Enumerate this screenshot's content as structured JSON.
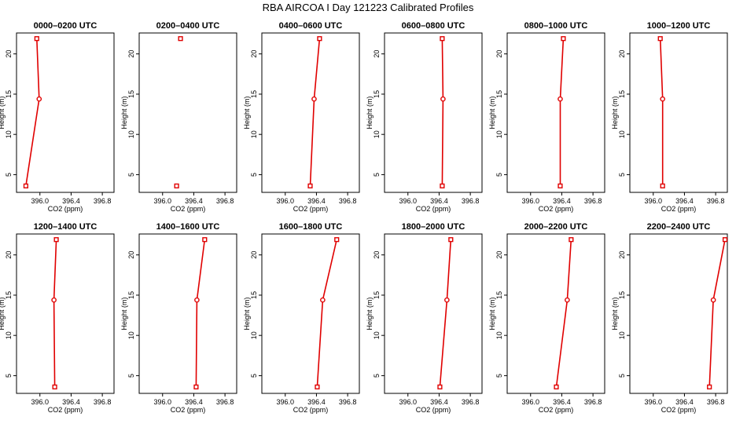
{
  "title": "RBA AIRCOA I  Day 121223  Calibrated Profiles",
  "colors": {
    "series": "#e00000",
    "axis": "#000000"
  },
  "chart_data": [
    {
      "type": "line",
      "title": "0000–0200 UTC",
      "xlabel": "CO2 (ppm)",
      "ylabel": "Height (m)",
      "xlim": [
        395.7,
        396.95
      ],
      "ylim": [
        2.8,
        22.6
      ],
      "xticks": [
        "396.0",
        "396.4",
        "396.8"
      ],
      "xtick_values": [
        396.0,
        396.4,
        396.8
      ],
      "yticks": [
        "5",
        "10",
        "15",
        "20"
      ],
      "ytick_values": [
        5,
        10,
        15,
        20
      ],
      "series": [
        {
          "line": true,
          "points": [
            {
              "x": 395.82,
              "y": 3.6,
              "marker": "square"
            },
            {
              "x": 395.99,
              "y": 14.4,
              "marker": "circle"
            },
            {
              "x": 395.96,
              "y": 21.9,
              "marker": "square"
            }
          ]
        }
      ]
    },
    {
      "type": "line",
      "title": "0200–0400 UTC",
      "xlabel": "CO2 (ppm)",
      "ylabel": "Height (m)",
      "xlim": [
        395.7,
        396.95
      ],
      "ylim": [
        2.8,
        22.6
      ],
      "xticks": [
        "396.0",
        "396.4",
        "396.8"
      ],
      "xtick_values": [
        396.0,
        396.4,
        396.8
      ],
      "yticks": [
        "5",
        "10",
        "15",
        "20"
      ],
      "ytick_values": [
        5,
        10,
        15,
        20
      ],
      "series": [
        {
          "line": false,
          "points": [
            {
              "x": 396.18,
              "y": 3.6,
              "marker": "square"
            },
            {
              "x": 396.23,
              "y": 21.9,
              "marker": "square"
            }
          ]
        }
      ]
    },
    {
      "type": "line",
      "title": "0400–0600 UTC",
      "xlabel": "CO2 (ppm)",
      "ylabel": "Height (m)",
      "xlim": [
        395.7,
        396.95
      ],
      "ylim": [
        2.8,
        22.6
      ],
      "xticks": [
        "396.0",
        "396.4",
        "396.8"
      ],
      "xtick_values": [
        396.0,
        396.4,
        396.8
      ],
      "yticks": [
        "5",
        "10",
        "15",
        "20"
      ],
      "ytick_values": [
        5,
        10,
        15,
        20
      ],
      "series": [
        {
          "line": true,
          "points": [
            {
              "x": 396.32,
              "y": 3.6,
              "marker": "square"
            },
            {
              "x": 396.37,
              "y": 14.4,
              "marker": "circle"
            },
            {
              "x": 396.44,
              "y": 21.9,
              "marker": "square"
            }
          ]
        }
      ]
    },
    {
      "type": "line",
      "title": "0600–0800 UTC",
      "xlabel": "CO2 (ppm)",
      "ylabel": "Height (m)",
      "xlim": [
        395.7,
        396.95
      ],
      "ylim": [
        2.8,
        22.6
      ],
      "xticks": [
        "396.0",
        "396.4",
        "396.8"
      ],
      "xtick_values": [
        396.0,
        396.4,
        396.8
      ],
      "yticks": [
        "5",
        "10",
        "15",
        "20"
      ],
      "ytick_values": [
        5,
        10,
        15,
        20
      ],
      "series": [
        {
          "line": true,
          "points": [
            {
              "x": 396.44,
              "y": 3.6,
              "marker": "square"
            },
            {
              "x": 396.45,
              "y": 14.4,
              "marker": "circle"
            },
            {
              "x": 396.44,
              "y": 21.9,
              "marker": "square"
            }
          ]
        }
      ]
    },
    {
      "type": "line",
      "title": "0800–1000 UTC",
      "xlabel": "CO2 (ppm)",
      "ylabel": "Height (m)",
      "xlim": [
        395.7,
        396.95
      ],
      "ylim": [
        2.8,
        22.6
      ],
      "xticks": [
        "396.0",
        "396.4",
        "396.8"
      ],
      "xtick_values": [
        396.0,
        396.4,
        396.8
      ],
      "yticks": [
        "5",
        "10",
        "15",
        "20"
      ],
      "ytick_values": [
        5,
        10,
        15,
        20
      ],
      "series": [
        {
          "line": true,
          "points": [
            {
              "x": 396.38,
              "y": 3.6,
              "marker": "square"
            },
            {
              "x": 396.38,
              "y": 14.4,
              "marker": "circle"
            },
            {
              "x": 396.42,
              "y": 21.9,
              "marker": "square"
            }
          ]
        }
      ]
    },
    {
      "type": "line",
      "title": "1000–1200 UTC",
      "xlabel": "CO2 (ppm)",
      "ylabel": "Height (m)",
      "xlim": [
        395.7,
        396.95
      ],
      "ylim": [
        2.8,
        22.6
      ],
      "xticks": [
        "396.0",
        "396.4",
        "396.8"
      ],
      "xtick_values": [
        396.0,
        396.4,
        396.8
      ],
      "yticks": [
        "5",
        "10",
        "15",
        "20"
      ],
      "ytick_values": [
        5,
        10,
        15,
        20
      ],
      "series": [
        {
          "line": true,
          "points": [
            {
              "x": 396.12,
              "y": 3.6,
              "marker": "square"
            },
            {
              "x": 396.12,
              "y": 14.4,
              "marker": "circle"
            },
            {
              "x": 396.09,
              "y": 21.9,
              "marker": "square"
            }
          ]
        }
      ]
    },
    {
      "type": "line",
      "title": "1200–1400 UTC",
      "xlabel": "CO2 (ppm)",
      "ylabel": "Height (m)",
      "xlim": [
        395.7,
        396.95
      ],
      "ylim": [
        2.8,
        22.6
      ],
      "xticks": [
        "396.0",
        "396.4",
        "396.8"
      ],
      "xtick_values": [
        396.0,
        396.4,
        396.8
      ],
      "yticks": [
        "5",
        "10",
        "15",
        "20"
      ],
      "ytick_values": [
        5,
        10,
        15,
        20
      ],
      "series": [
        {
          "line": true,
          "points": [
            {
              "x": 396.19,
              "y": 3.6,
              "marker": "square"
            },
            {
              "x": 396.18,
              "y": 14.4,
              "marker": "circle"
            },
            {
              "x": 396.21,
              "y": 21.9,
              "marker": "square"
            }
          ]
        }
      ]
    },
    {
      "type": "line",
      "title": "1400–1600 UTC",
      "xlabel": "CO2 (ppm)",
      "ylabel": "Height (m)",
      "xlim": [
        395.7,
        396.95
      ],
      "ylim": [
        2.8,
        22.6
      ],
      "xticks": [
        "396.0",
        "396.4",
        "396.8"
      ],
      "xtick_values": [
        396.0,
        396.4,
        396.8
      ],
      "yticks": [
        "5",
        "10",
        "15",
        "20"
      ],
      "ytick_values": [
        5,
        10,
        15,
        20
      ],
      "series": [
        {
          "line": true,
          "points": [
            {
              "x": 396.43,
              "y": 3.6,
              "marker": "square"
            },
            {
              "x": 396.44,
              "y": 14.4,
              "marker": "circle"
            },
            {
              "x": 396.54,
              "y": 21.9,
              "marker": "square"
            }
          ]
        }
      ]
    },
    {
      "type": "line",
      "title": "1600–1800 UTC",
      "xlabel": "CO2 (ppm)",
      "ylabel": "Height (m)",
      "xlim": [
        395.7,
        396.95
      ],
      "ylim": [
        2.8,
        22.6
      ],
      "xticks": [
        "396.0",
        "396.4",
        "396.8"
      ],
      "xtick_values": [
        396.0,
        396.4,
        396.8
      ],
      "yticks": [
        "5",
        "10",
        "15",
        "20"
      ],
      "ytick_values": [
        5,
        10,
        15,
        20
      ],
      "series": [
        {
          "line": true,
          "points": [
            {
              "x": 396.41,
              "y": 3.6,
              "marker": "square"
            },
            {
              "x": 396.48,
              "y": 14.4,
              "marker": "circle"
            },
            {
              "x": 396.66,
              "y": 21.9,
              "marker": "square"
            }
          ]
        }
      ]
    },
    {
      "type": "line",
      "title": "1800–2000 UTC",
      "xlabel": "CO2 (ppm)",
      "ylabel": "Height (m)",
      "xlim": [
        395.7,
        396.95
      ],
      "ylim": [
        2.8,
        22.6
      ],
      "xticks": [
        "396.0",
        "396.4",
        "396.8"
      ],
      "xtick_values": [
        396.0,
        396.4,
        396.8
      ],
      "yticks": [
        "5",
        "10",
        "15",
        "20"
      ],
      "ytick_values": [
        5,
        10,
        15,
        20
      ],
      "series": [
        {
          "line": true,
          "points": [
            {
              "x": 396.41,
              "y": 3.6,
              "marker": "square"
            },
            {
              "x": 396.5,
              "y": 14.4,
              "marker": "circle"
            },
            {
              "x": 396.55,
              "y": 21.9,
              "marker": "square"
            }
          ]
        }
      ]
    },
    {
      "type": "line",
      "title": "2000–2200 UTC",
      "xlabel": "CO2 (ppm)",
      "ylabel": "Height (m)",
      "xlim": [
        395.7,
        396.95
      ],
      "ylim": [
        2.8,
        22.6
      ],
      "xticks": [
        "396.0",
        "396.4",
        "396.8"
      ],
      "xtick_values": [
        396.0,
        396.4,
        396.8
      ],
      "yticks": [
        "5",
        "10",
        "15",
        "20"
      ],
      "ytick_values": [
        5,
        10,
        15,
        20
      ],
      "series": [
        {
          "line": true,
          "points": [
            {
              "x": 396.33,
              "y": 3.6,
              "marker": "square"
            },
            {
              "x": 396.47,
              "y": 14.4,
              "marker": "circle"
            },
            {
              "x": 396.52,
              "y": 21.9,
              "marker": "square"
            }
          ]
        }
      ]
    },
    {
      "type": "line",
      "title": "2200–2400 UTC",
      "xlabel": "CO2 (ppm)",
      "ylabel": "Height (m)",
      "xlim": [
        395.7,
        396.95
      ],
      "ylim": [
        2.8,
        22.6
      ],
      "xticks": [
        "396.0",
        "396.4",
        "396.8"
      ],
      "xtick_values": [
        396.0,
        396.4,
        396.8
      ],
      "yticks": [
        "5",
        "10",
        "15",
        "20"
      ],
      "ytick_values": [
        5,
        10,
        15,
        20
      ],
      "series": [
        {
          "line": true,
          "points": [
            {
              "x": 396.72,
              "y": 3.6,
              "marker": "square"
            },
            {
              "x": 396.77,
              "y": 14.4,
              "marker": "circle"
            },
            {
              "x": 396.92,
              "y": 21.9,
              "marker": "square"
            }
          ]
        }
      ]
    }
  ]
}
